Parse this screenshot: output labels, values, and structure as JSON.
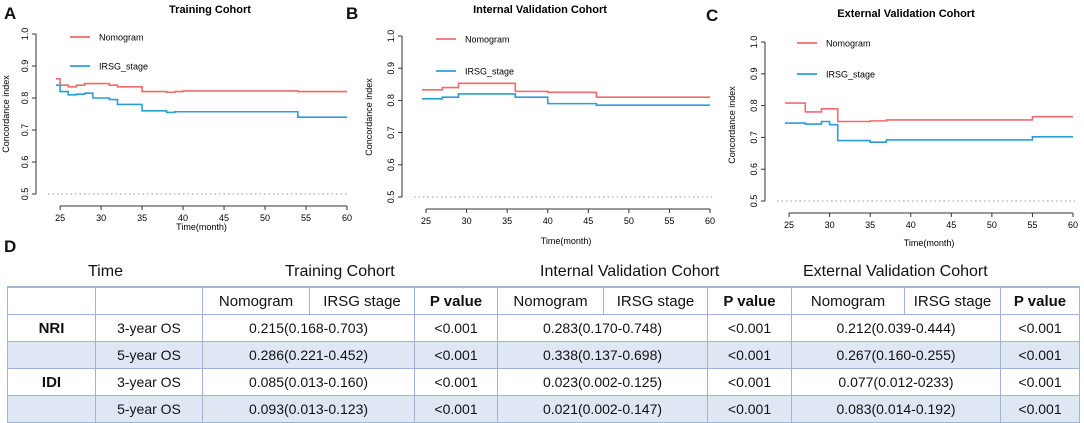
{
  "panel_labels": [
    "A",
    "B",
    "C",
    "D"
  ],
  "chart_data": [
    {
      "type": "line",
      "title": "Training Cohort",
      "xlabel": "Time(month)",
      "ylabel": "Concordance index",
      "xlim": [
        24.5,
        60
      ],
      "ylim": [
        0.5,
        1.0
      ],
      "xticks": [
        25,
        30,
        35,
        40,
        45,
        50,
        55,
        60
      ],
      "yticks": [
        0.5,
        0.6,
        0.7,
        0.8,
        0.9,
        1.0
      ],
      "reference_line": 0.5,
      "legend": [
        "Nomogram",
        "IRSG_stage"
      ],
      "series": [
        {
          "name": "Nomogram",
          "color": "#f26b6b",
          "x": [
            24.5,
            25,
            26,
            27,
            28,
            29,
            30,
            31,
            32,
            33,
            34,
            35,
            36,
            37,
            38,
            39,
            40,
            53,
            54,
            60
          ],
          "y": [
            0.86,
            0.84,
            0.835,
            0.84,
            0.845,
            0.845,
            0.845,
            0.84,
            0.835,
            0.835,
            0.835,
            0.82,
            0.82,
            0.82,
            0.818,
            0.82,
            0.822,
            0.822,
            0.82,
            0.82
          ]
        },
        {
          "name": "IRSG_stage",
          "color": "#2a9fd6",
          "x": [
            24.5,
            25,
            26,
            27,
            28,
            29,
            30,
            31,
            32,
            33,
            34,
            35,
            36,
            37,
            38,
            39,
            40,
            53,
            54,
            60
          ],
          "y": [
            0.84,
            0.82,
            0.81,
            0.812,
            0.815,
            0.8,
            0.8,
            0.795,
            0.78,
            0.78,
            0.78,
            0.76,
            0.76,
            0.76,
            0.755,
            0.757,
            0.757,
            0.757,
            0.74,
            0.74
          ]
        }
      ]
    },
    {
      "type": "line",
      "title": "Internal Validation Cohort",
      "xlabel": "Time(month)",
      "ylabel": "Concordance index",
      "xlim": [
        24.5,
        60
      ],
      "ylim": [
        0.5,
        1.0
      ],
      "xticks": [
        25,
        30,
        35,
        40,
        45,
        50,
        55,
        60
      ],
      "yticks": [
        0.5,
        0.6,
        0.7,
        0.8,
        0.9,
        1.0
      ],
      "reference_line": 0.5,
      "legend": [
        "Nomogram",
        "IRSG_stage"
      ],
      "series": [
        {
          "name": "Nomogram",
          "color": "#f26b6b",
          "x": [
            24.5,
            26,
            27,
            28,
            29,
            35,
            36,
            39,
            40,
            45,
            46,
            60
          ],
          "y": [
            0.833,
            0.833,
            0.84,
            0.84,
            0.853,
            0.853,
            0.828,
            0.828,
            0.825,
            0.825,
            0.81,
            0.81
          ]
        },
        {
          "name": "IRSG_stage",
          "color": "#2a9fd6",
          "x": [
            24.5,
            26,
            27,
            28,
            29,
            35,
            36,
            39,
            40,
            45,
            46,
            60
          ],
          "y": [
            0.805,
            0.805,
            0.81,
            0.81,
            0.82,
            0.82,
            0.81,
            0.81,
            0.79,
            0.79,
            0.785,
            0.785
          ]
        }
      ]
    },
    {
      "type": "line",
      "title": "External Validation Cohort",
      "xlabel": "Time(month)",
      "ylabel": "Concordance index",
      "xlim": [
        24.5,
        60
      ],
      "ylim": [
        0.5,
        1.0
      ],
      "xticks": [
        25,
        30,
        35,
        40,
        45,
        50,
        55,
        60
      ],
      "yticks": [
        0.5,
        0.6,
        0.7,
        0.8,
        0.9,
        1.0
      ],
      "reference_line": 0.5,
      "legend": [
        "Nomogram",
        "IRSG_stage"
      ],
      "series": [
        {
          "name": "Nomogram",
          "color": "#f26b6b",
          "x": [
            24.5,
            26.5,
            27,
            28,
            29,
            31,
            34,
            35,
            36,
            37,
            54,
            55,
            60
          ],
          "y": [
            0.808,
            0.808,
            0.78,
            0.78,
            0.79,
            0.75,
            0.75,
            0.752,
            0.752,
            0.755,
            0.755,
            0.765,
            0.765
          ]
        },
        {
          "name": "IRSG_stage",
          "color": "#2a9fd6",
          "x": [
            24.5,
            26.5,
            27,
            28,
            29,
            30,
            31,
            34,
            35,
            36,
            37,
            54,
            55,
            60
          ],
          "y": [
            0.745,
            0.745,
            0.742,
            0.742,
            0.75,
            0.74,
            0.69,
            0.69,
            0.685,
            0.685,
            0.692,
            0.692,
            0.702,
            0.702
          ]
        }
      ]
    }
  ],
  "table": {
    "headers": {
      "time": "Time",
      "training": "Training Cohort",
      "internal": "Internal Validation Cohort",
      "external": "External Validation Cohort"
    },
    "subheaders": [
      "",
      "",
      "Nomogram",
      "IRSG stage",
      "P value",
      "Nomogram",
      "IRSG stage",
      "P value",
      "Nomogram",
      "IRSG stage",
      "P value"
    ],
    "rows": [
      {
        "metric": "NRI",
        "time": "3-year OS",
        "training": "0.215(0.168-0.703)",
        "training_p": "<0.001",
        "internal": "0.283(0.170-0.748)",
        "internal_p": "<0.001",
        "external": "0.212(0.039-0.444)",
        "external_p": "<0.001"
      },
      {
        "metric": "",
        "time": "5-year OS",
        "training": "0.286(0.221-0.452)",
        "training_p": "<0.001",
        "internal": "0.338(0.137-0.698)",
        "internal_p": "<0.001",
        "external": "0.267(0.160-0.255)",
        "external_p": "<0.001"
      },
      {
        "metric": "IDI",
        "time": "3-year OS",
        "training": "0.085(0.013-0.160)",
        "training_p": "<0.001",
        "internal": "0.023(0.002-0.125)",
        "internal_p": "<0.001",
        "external": "0.077(0.012-0233)",
        "external_p": "<0.001"
      },
      {
        "metric": "",
        "time": "5-year OS",
        "training": "0.093(0.013-0.123)",
        "training_p": "<0.001",
        "internal": "0.021(0.002-0.147)",
        "internal_p": "<0.001",
        "external": "0.083(0.014-0.192)",
        "external_p": "<0.001"
      }
    ]
  }
}
